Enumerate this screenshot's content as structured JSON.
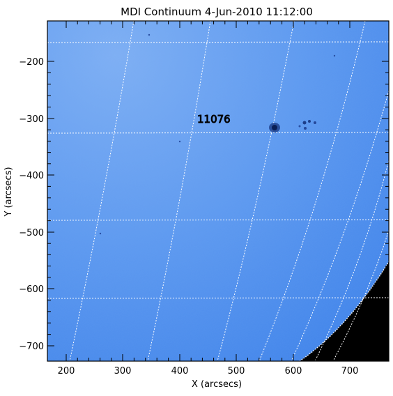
{
  "figure": {
    "title": "MDI Continuum  4-Jun-2010 11:12:00",
    "x_axis_label": "X (arcsecs)",
    "y_axis_label": "Y (arcsecs)",
    "x_ticks": [
      "200",
      "300",
      "400",
      "500",
      "600",
      "700"
    ],
    "y_ticks": [
      "−200",
      "−300",
      "−400",
      "−500",
      "−600",
      "−700"
    ],
    "region_label": "11076"
  },
  "colors": {
    "disk_blue": "#4f8ff0",
    "disk_blue_light": "#6aa4f2",
    "sunspot_dark": "#0f2a6a",
    "space_black": "#000000",
    "grid_white": "#ffffff",
    "frame": "#000000"
  }
}
